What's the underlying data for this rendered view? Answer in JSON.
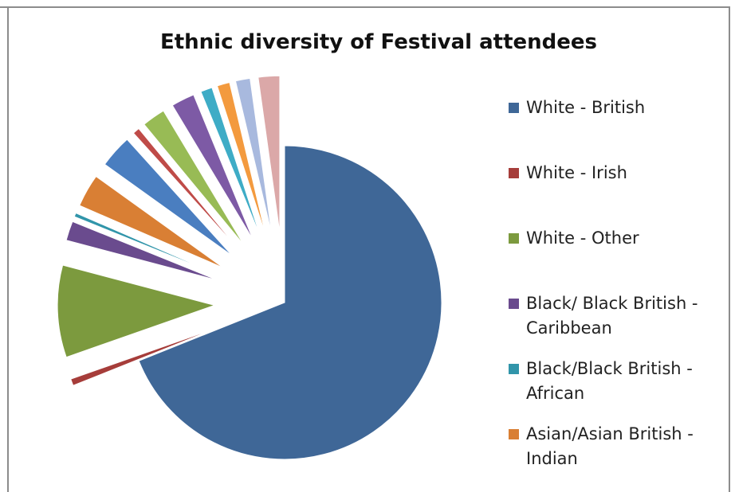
{
  "chart_data": {
    "type": "pie",
    "title": "Ethnic diversity of Festival attendees",
    "categories": [
      "White - British",
      "White - Irish",
      "White - Other",
      "Black/ Black British - Caribbean",
      "Black/Black British - African",
      "Asian/Asian British - Indian"
    ],
    "slices": [
      {
        "label": "White - British",
        "value": 69.0,
        "color": "#3f6797",
        "in_legend": true
      },
      {
        "label": "White - Irish",
        "value": 0.7,
        "color": "#a63d3a",
        "in_legend": true
      },
      {
        "label": "White - Other",
        "value": 9.5,
        "color": "#7c9a3e",
        "in_legend": true
      },
      {
        "label": "Black/ Black British - Caribbean",
        "value": 2.0,
        "color": "#6a4b8e",
        "in_legend": true
      },
      {
        "label": "Black/Black British - African",
        "value": 0.4,
        "color": "#3195aa",
        "in_legend": true
      },
      {
        "label": "Asian/Asian British - Indian",
        "value": 3.4,
        "color": "#d97f34",
        "in_legend": true
      },
      {
        "label": "",
        "value": 3.4,
        "color": "#4a7ec0",
        "in_legend": false
      },
      {
        "label": "",
        "value": 0.7,
        "color": "#bf4b48",
        "in_legend": false
      },
      {
        "label": "",
        "value": 2.4,
        "color": "#98bb55",
        "in_legend": false
      },
      {
        "label": "",
        "value": 2.4,
        "color": "#7d5aa5",
        "in_legend": false
      },
      {
        "label": "",
        "value": 1.2,
        "color": "#3eacc6",
        "in_legend": false
      },
      {
        "label": "",
        "value": 1.3,
        "color": "#f39a3e",
        "in_legend": false
      },
      {
        "label": "",
        "value": 1.5,
        "color": "#a8b9de",
        "in_legend": false
      },
      {
        "label": "",
        "value": 2.2,
        "color": "#dba8a8",
        "in_legend": false
      }
    ],
    "legend_position": "right"
  }
}
